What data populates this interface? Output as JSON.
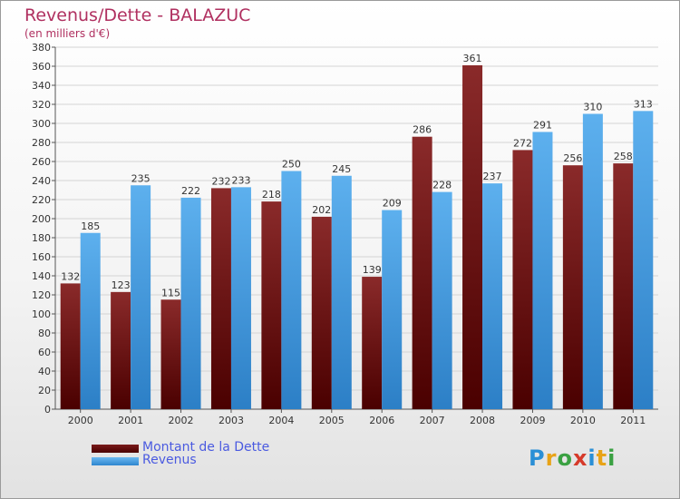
{
  "chart_data": {
    "type": "bar",
    "title": "Revenus/Dette - BALAZUC",
    "subtitle": "(en milliers d'€)",
    "categories": [
      "2000",
      "2001",
      "2002",
      "2003",
      "2004",
      "2005",
      "2006",
      "2007",
      "2008",
      "2009",
      "2010",
      "2011"
    ],
    "series": [
      {
        "name": "Montant de la Dette",
        "color": "#7a1a1a",
        "values": [
          132,
          123,
          115,
          232,
          218,
          202,
          139,
          286,
          361,
          272,
          256,
          258
        ]
      },
      {
        "name": "Revenus",
        "color": "#4ea3e6",
        "values": [
          185,
          235,
          222,
          233,
          250,
          245,
          209,
          228,
          237,
          291,
          310,
          313
        ]
      }
    ],
    "ylim": [
      0,
      380
    ],
    "ytick_step": 20,
    "grid": true,
    "legend_position": "bottom-left"
  },
  "logo": {
    "text": "Proxiti"
  }
}
